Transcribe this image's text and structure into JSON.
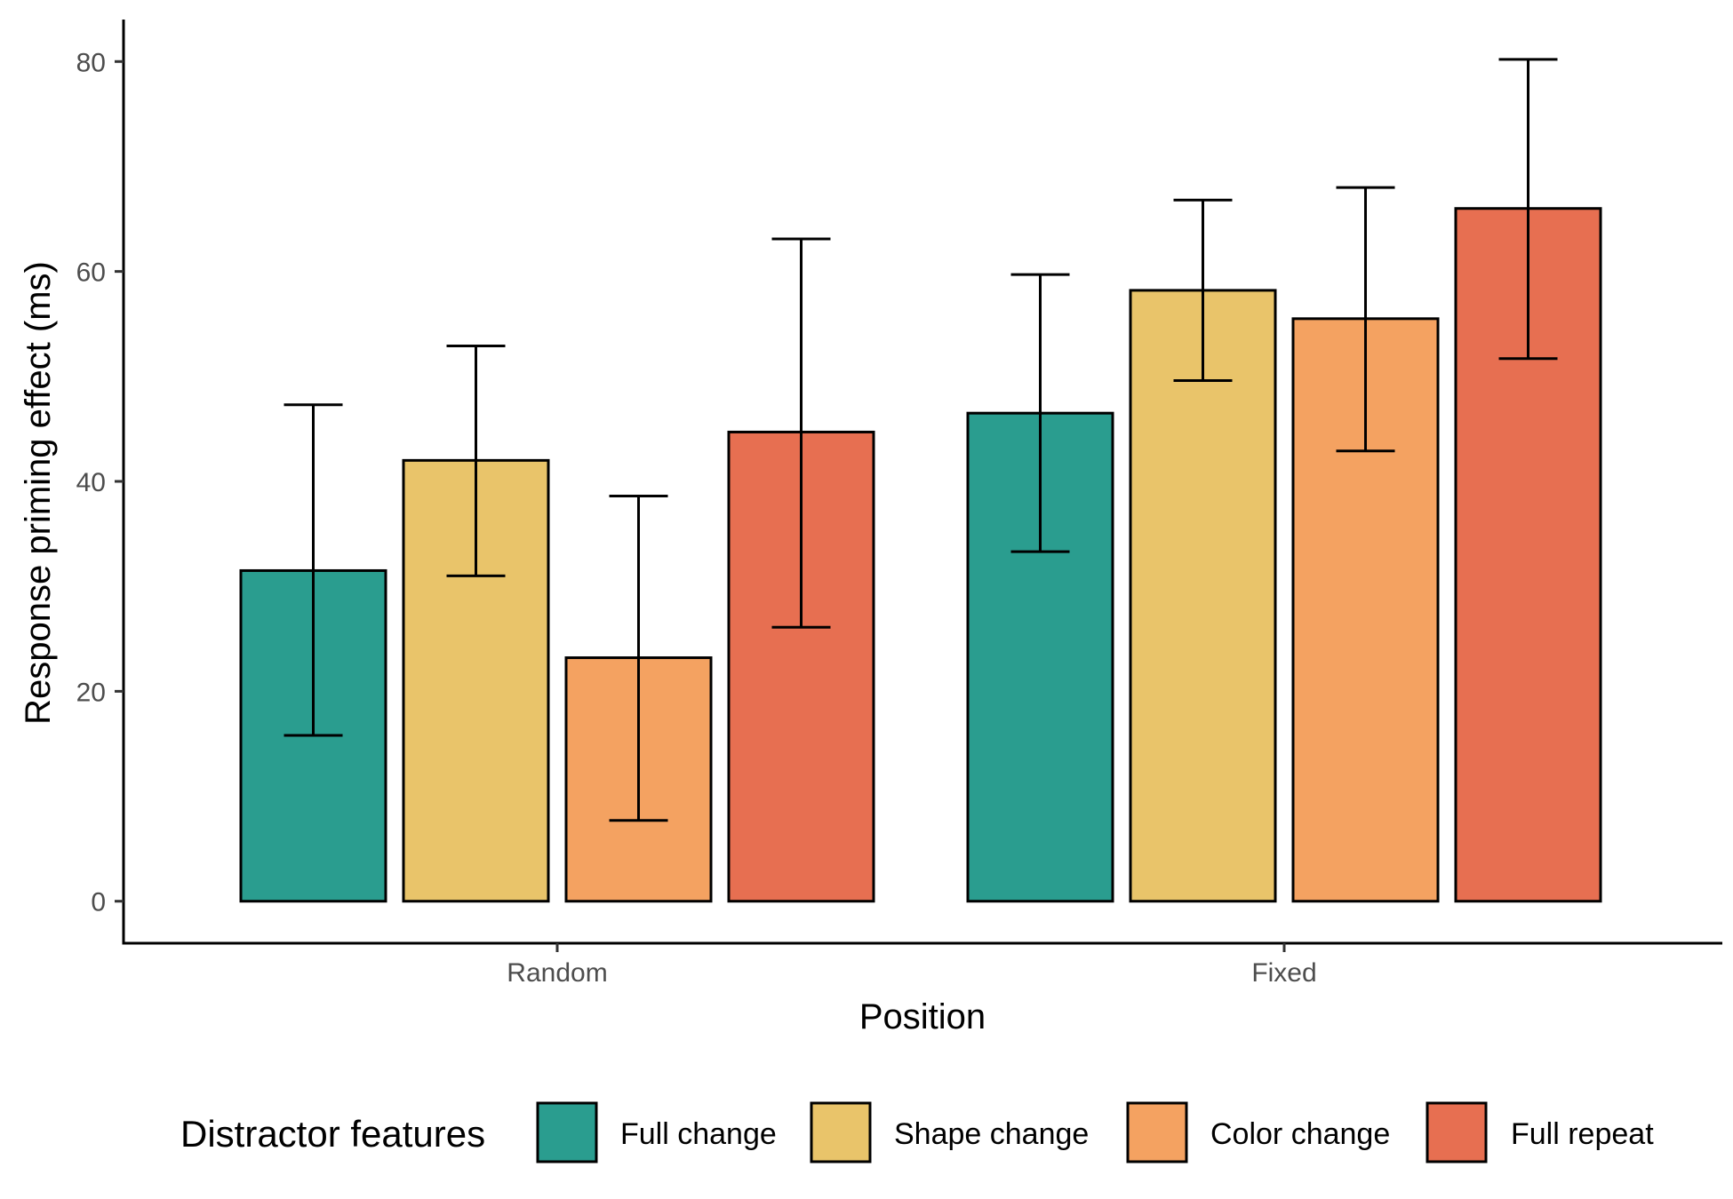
{
  "chart_data": {
    "type": "bar",
    "title": "",
    "xlabel": "Position",
    "ylabel": "Response priming effect (ms)",
    "categories": [
      "Random",
      "Fixed"
    ],
    "ylim": [
      -4,
      84
    ],
    "yticks": [
      0,
      20,
      40,
      60,
      80
    ],
    "ytick_labels": [
      "0",
      "20",
      "40",
      "60",
      "80"
    ],
    "legend": {
      "title": "Distractor features",
      "position": "bottom"
    },
    "series": [
      {
        "name": "Full change",
        "color": "#2A9D8F",
        "values": [
          31.5,
          46.5
        ],
        "error_low": [
          15.8,
          33.3
        ],
        "error_high": [
          47.3,
          59.7
        ]
      },
      {
        "name": "Shape change",
        "color": "#E9C46A",
        "values": [
          42.0,
          58.2
        ],
        "error_low": [
          31.0,
          49.6
        ],
        "error_high": [
          52.9,
          66.8
        ]
      },
      {
        "name": "Color change",
        "color": "#F4A261",
        "values": [
          23.2,
          55.5
        ],
        "error_low": [
          7.7,
          42.9
        ],
        "error_high": [
          38.6,
          68.0
        ]
      },
      {
        "name": "Full repeat",
        "color": "#E76F51",
        "values": [
          44.7,
          66.0
        ],
        "error_low": [
          26.1,
          51.7
        ],
        "error_high": [
          63.1,
          80.2
        ]
      }
    ]
  }
}
